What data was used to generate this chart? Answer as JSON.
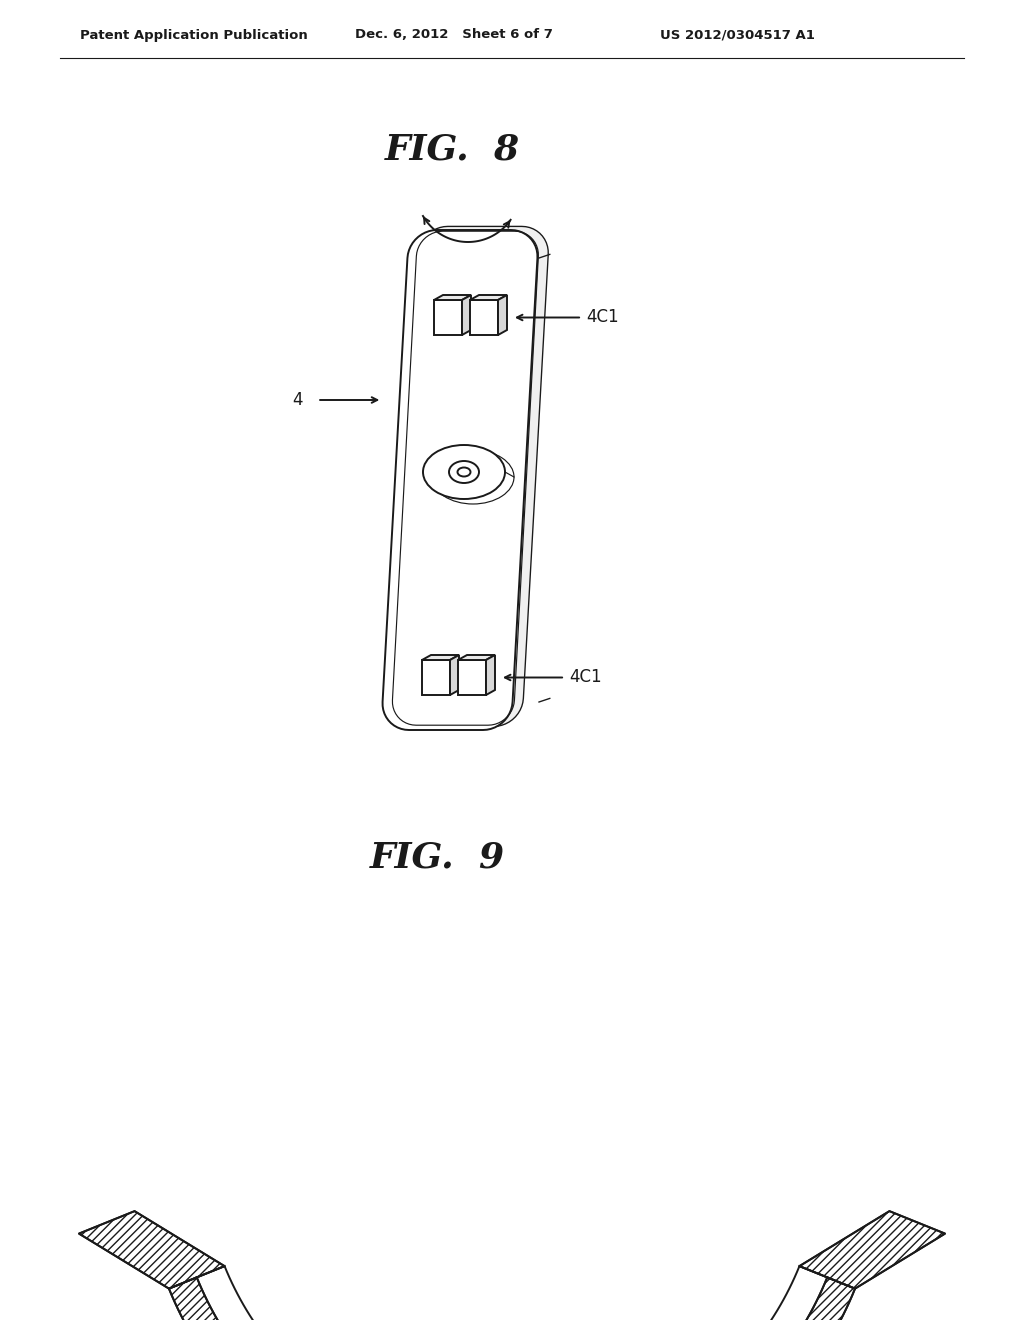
{
  "header_left": "Patent Application Publication",
  "header_mid": "Dec. 6, 2012   Sheet 6 of 7",
  "header_right": "US 2012/0304517 A1",
  "fig8_label": "FIG.  8",
  "fig9_label": "FIG.  9",
  "label_4": "4",
  "label_4c1_top": "4C1",
  "label_4c1_bot": "4C1",
  "bg_color": "#ffffff",
  "line_color": "#1a1a1a",
  "hatch_color": "#000000"
}
